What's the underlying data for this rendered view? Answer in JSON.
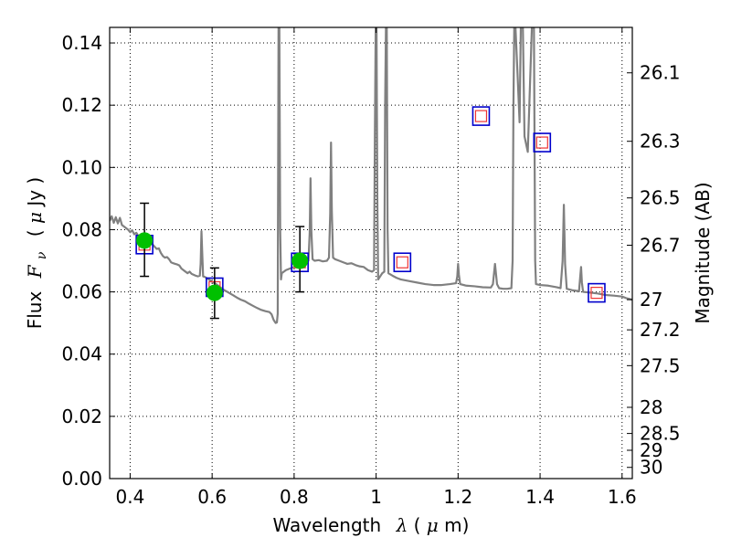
{
  "chart_data": {
    "type": "scatter",
    "title": "",
    "xlabel": {
      "prefix": "Wavelength",
      "symbol": "λ",
      "unit_open": " (",
      "unit_symbol": "μ",
      "unit_rest": "m)"
    },
    "ylabel": {
      "prefix": "Flux",
      "symbol": "F",
      "subscript": "ν",
      "unit_open": "( ",
      "unit_symbol": "μ",
      "unit_rest": "Jy )"
    },
    "y2label": "Magnitude (AB)",
    "xlim": [
      0.35,
      1.625
    ],
    "ylim": [
      0.0,
      0.145
    ],
    "grid": true,
    "x_ticks": [
      {
        "value": 0.4,
        "label": "0.4"
      },
      {
        "value": 0.6,
        "label": "0.6"
      },
      {
        "value": 0.8,
        "label": "0.8"
      },
      {
        "value": 1.0,
        "label": "1"
      },
      {
        "value": 1.2,
        "label": "1.2"
      },
      {
        "value": 1.4,
        "label": "1.4"
      },
      {
        "value": 1.6,
        "label": "1.6"
      }
    ],
    "y_ticks": [
      {
        "value": 0.0,
        "label": "0.00"
      },
      {
        "value": 0.02,
        "label": "0.02"
      },
      {
        "value": 0.04,
        "label": "0.04"
      },
      {
        "value": 0.06,
        "label": "0.06"
      },
      {
        "value": 0.08,
        "label": "0.08"
      },
      {
        "value": 0.1,
        "label": "0.10"
      },
      {
        "value": 0.12,
        "label": "0.12"
      },
      {
        "value": 0.14,
        "label": "0.14"
      }
    ],
    "y2_ticks": [
      {
        "flux": 0.1304,
        "label": "26.1"
      },
      {
        "flux": 0.1084,
        "label": "26.3"
      },
      {
        "flux": 0.0902,
        "label": "26.5"
      },
      {
        "flux": 0.075,
        "label": "26.7"
      },
      {
        "flux": 0.0575,
        "label": "27"
      },
      {
        "flux": 0.0478,
        "label": "27.2"
      },
      {
        "flux": 0.0363,
        "label": "27.5"
      },
      {
        "flux": 0.0229,
        "label": "28"
      },
      {
        "flux": 0.0145,
        "label": "28.5"
      },
      {
        "flux": 0.0091,
        "label": "29"
      },
      {
        "flux": 0.0036,
        "label": "30"
      }
    ],
    "colors": {
      "spectrum": "#808080",
      "observed": "#00c000",
      "model_box": "#0000cc",
      "model_inner": "#ee3333",
      "errorbar": "#000000"
    },
    "series": [
      {
        "kind": "spectrum",
        "points": [
          [
            0.35,
            0.0828
          ],
          [
            0.355,
            0.0843
          ],
          [
            0.36,
            0.0822
          ],
          [
            0.365,
            0.084
          ],
          [
            0.37,
            0.082
          ],
          [
            0.375,
            0.0838
          ],
          [
            0.38,
            0.0815
          ],
          [
            0.385,
            0.081
          ],
          [
            0.39,
            0.0805
          ],
          [
            0.395,
            0.08
          ],
          [
            0.4,
            0.0792
          ],
          [
            0.405,
            0.0798
          ],
          [
            0.41,
            0.0785
          ],
          [
            0.415,
            0.079
          ],
          [
            0.42,
            0.078
          ],
          [
            0.425,
            0.0776
          ],
          [
            0.43,
            0.0772
          ],
          [
            0.435,
            0.077
          ],
          [
            0.44,
            0.0768
          ],
          [
            0.445,
            0.0765
          ],
          [
            0.45,
            0.0758
          ],
          [
            0.455,
            0.0752
          ],
          [
            0.46,
            0.0745
          ],
          [
            0.465,
            0.0738
          ],
          [
            0.47,
            0.074
          ],
          [
            0.475,
            0.0725
          ],
          [
            0.48,
            0.0715
          ],
          [
            0.485,
            0.071
          ],
          [
            0.49,
            0.0712
          ],
          [
            0.495,
            0.0705
          ],
          [
            0.5,
            0.0695
          ],
          [
            0.505,
            0.0692
          ],
          [
            0.51,
            0.069
          ],
          [
            0.515,
            0.0688
          ],
          [
            0.52,
            0.0685
          ],
          [
            0.525,
            0.0675
          ],
          [
            0.53,
            0.067
          ],
          [
            0.535,
            0.0665
          ],
          [
            0.54,
            0.066
          ],
          [
            0.545,
            0.0665
          ],
          [
            0.55,
            0.0658
          ],
          [
            0.555,
            0.0655
          ],
          [
            0.56,
            0.0652
          ],
          [
            0.565,
            0.065
          ],
          [
            0.57,
            0.0652
          ],
          [
            0.572,
            0.069
          ],
          [
            0.574,
            0.0795
          ],
          [
            0.576,
            0.072
          ],
          [
            0.578,
            0.065
          ],
          [
            0.582,
            0.0648
          ],
          [
            0.59,
            0.0642
          ],
          [
            0.6,
            0.0632
          ],
          [
            0.61,
            0.0625
          ],
          [
            0.62,
            0.0615
          ],
          [
            0.63,
            0.0605
          ],
          [
            0.64,
            0.0598
          ],
          [
            0.65,
            0.059
          ],
          [
            0.66,
            0.0582
          ],
          [
            0.67,
            0.0575
          ],
          [
            0.68,
            0.057
          ],
          [
            0.69,
            0.0562
          ],
          [
            0.7,
            0.0555
          ],
          [
            0.71,
            0.0548
          ],
          [
            0.72,
            0.0542
          ],
          [
            0.73,
            0.0538
          ],
          [
            0.74,
            0.0535
          ],
          [
            0.745,
            0.0528
          ],
          [
            0.75,
            0.051
          ],
          [
            0.755,
            0.05
          ],
          [
            0.758,
            0.0502
          ],
          [
            0.76,
            0.053
          ],
          [
            0.762,
            0.145
          ],
          [
            0.764,
            0.145
          ],
          [
            0.766,
            0.08
          ],
          [
            0.768,
            0.064
          ],
          [
            0.77,
            0.066
          ],
          [
            0.78,
            0.067
          ],
          [
            0.79,
            0.0675
          ],
          [
            0.8,
            0.068
          ],
          [
            0.81,
            0.0685
          ],
          [
            0.82,
            0.069
          ],
          [
            0.83,
            0.0695
          ],
          [
            0.835,
            0.07
          ],
          [
            0.838,
            0.079
          ],
          [
            0.84,
            0.0965
          ],
          [
            0.842,
            0.08
          ],
          [
            0.845,
            0.0705
          ],
          [
            0.85,
            0.07
          ],
          [
            0.86,
            0.0702
          ],
          [
            0.87,
            0.0698
          ],
          [
            0.88,
            0.07
          ],
          [
            0.885,
            0.071
          ],
          [
            0.888,
            0.085
          ],
          [
            0.89,
            0.108
          ],
          [
            0.892,
            0.086
          ],
          [
            0.895,
            0.071
          ],
          [
            0.9,
            0.0705
          ],
          [
            0.91,
            0.07
          ],
          [
            0.92,
            0.0695
          ],
          [
            0.93,
            0.069
          ],
          [
            0.94,
            0.0692
          ],
          [
            0.95,
            0.0686
          ],
          [
            0.96,
            0.0682
          ],
          [
            0.97,
            0.068
          ],
          [
            0.98,
            0.067
          ],
          [
            0.99,
            0.0665
          ],
          [
            0.995,
            0.067
          ],
          [
            0.997,
            0.11
          ],
          [
            0.999,
            0.145
          ],
          [
            1.001,
            0.145
          ],
          [
            1.003,
            0.09
          ],
          [
            1.005,
            0.064
          ],
          [
            1.01,
            0.065
          ],
          [
            1.015,
            0.066
          ],
          [
            1.02,
            0.0665
          ],
          [
            1.022,
            0.12
          ],
          [
            1.024,
            0.145
          ],
          [
            1.026,
            0.145
          ],
          [
            1.028,
            0.08
          ],
          [
            1.03,
            0.066
          ],
          [
            1.04,
            0.0652
          ],
          [
            1.05,
            0.0645
          ],
          [
            1.06,
            0.064
          ],
          [
            1.08,
            0.0635
          ],
          [
            1.1,
            0.063
          ],
          [
            1.12,
            0.0625
          ],
          [
            1.14,
            0.0622
          ],
          [
            1.16,
            0.0622
          ],
          [
            1.18,
            0.0625
          ],
          [
            1.195,
            0.0628
          ],
          [
            1.198,
            0.065
          ],
          [
            1.2,
            0.069
          ],
          [
            1.202,
            0.0655
          ],
          [
            1.205,
            0.0625
          ],
          [
            1.22,
            0.062
          ],
          [
            1.24,
            0.0618
          ],
          [
            1.26,
            0.0615
          ],
          [
            1.28,
            0.0614
          ],
          [
            1.285,
            0.0625
          ],
          [
            1.29,
            0.069
          ],
          [
            1.295,
            0.0625
          ],
          [
            1.3,
            0.0612
          ],
          [
            1.31,
            0.061
          ],
          [
            1.32,
            0.061
          ],
          [
            1.33,
            0.0612
          ],
          [
            1.333,
            0.07
          ],
          [
            1.335,
            0.12
          ],
          [
            1.337,
            0.145
          ],
          [
            1.34,
            0.145
          ],
          [
            1.345,
            0.13
          ],
          [
            1.35,
            0.1145
          ],
          [
            1.353,
            0.145
          ],
          [
            1.358,
            0.145
          ],
          [
            1.362,
            0.11
          ],
          [
            1.37,
            0.105
          ],
          [
            1.38,
            0.145
          ],
          [
            1.385,
            0.145
          ],
          [
            1.388,
            0.07
          ],
          [
            1.39,
            0.0625
          ],
          [
            1.4,
            0.0622
          ],
          [
            1.42,
            0.062
          ],
          [
            1.44,
            0.0615
          ],
          [
            1.45,
            0.0612
          ],
          [
            1.455,
            0.07
          ],
          [
            1.458,
            0.088
          ],
          [
            1.461,
            0.069
          ],
          [
            1.465,
            0.061
          ],
          [
            1.48,
            0.0605
          ],
          [
            1.495,
            0.0602
          ],
          [
            1.498,
            0.065
          ],
          [
            1.5,
            0.068
          ],
          [
            1.502,
            0.063
          ],
          [
            1.505,
            0.06
          ],
          [
            1.52,
            0.0598
          ],
          [
            1.54,
            0.0595
          ],
          [
            1.56,
            0.059
          ],
          [
            1.58,
            0.0588
          ],
          [
            1.6,
            0.0585
          ],
          [
            1.61,
            0.058
          ],
          [
            1.625,
            0.0575
          ]
        ]
      },
      {
        "kind": "observed",
        "points": [
          {
            "x": 0.435,
            "y": 0.0765,
            "err_low": 0.065,
            "err_high": 0.0885
          },
          {
            "x": 0.606,
            "y": 0.0597,
            "err_low": 0.0515,
            "err_high": 0.0677
          },
          {
            "x": 0.814,
            "y": 0.07,
            "err_low": 0.06,
            "err_high": 0.081
          }
        ]
      },
      {
        "kind": "model",
        "points": [
          {
            "x": 0.435,
            "y": 0.0752
          },
          {
            "x": 0.606,
            "y": 0.0615
          },
          {
            "x": 0.814,
            "y": 0.0695
          },
          {
            "x": 1.064,
            "y": 0.0695
          },
          {
            "x": 1.256,
            "y": 0.1165
          },
          {
            "x": 1.405,
            "y": 0.108
          },
          {
            "x": 1.538,
            "y": 0.0597
          }
        ]
      }
    ]
  }
}
